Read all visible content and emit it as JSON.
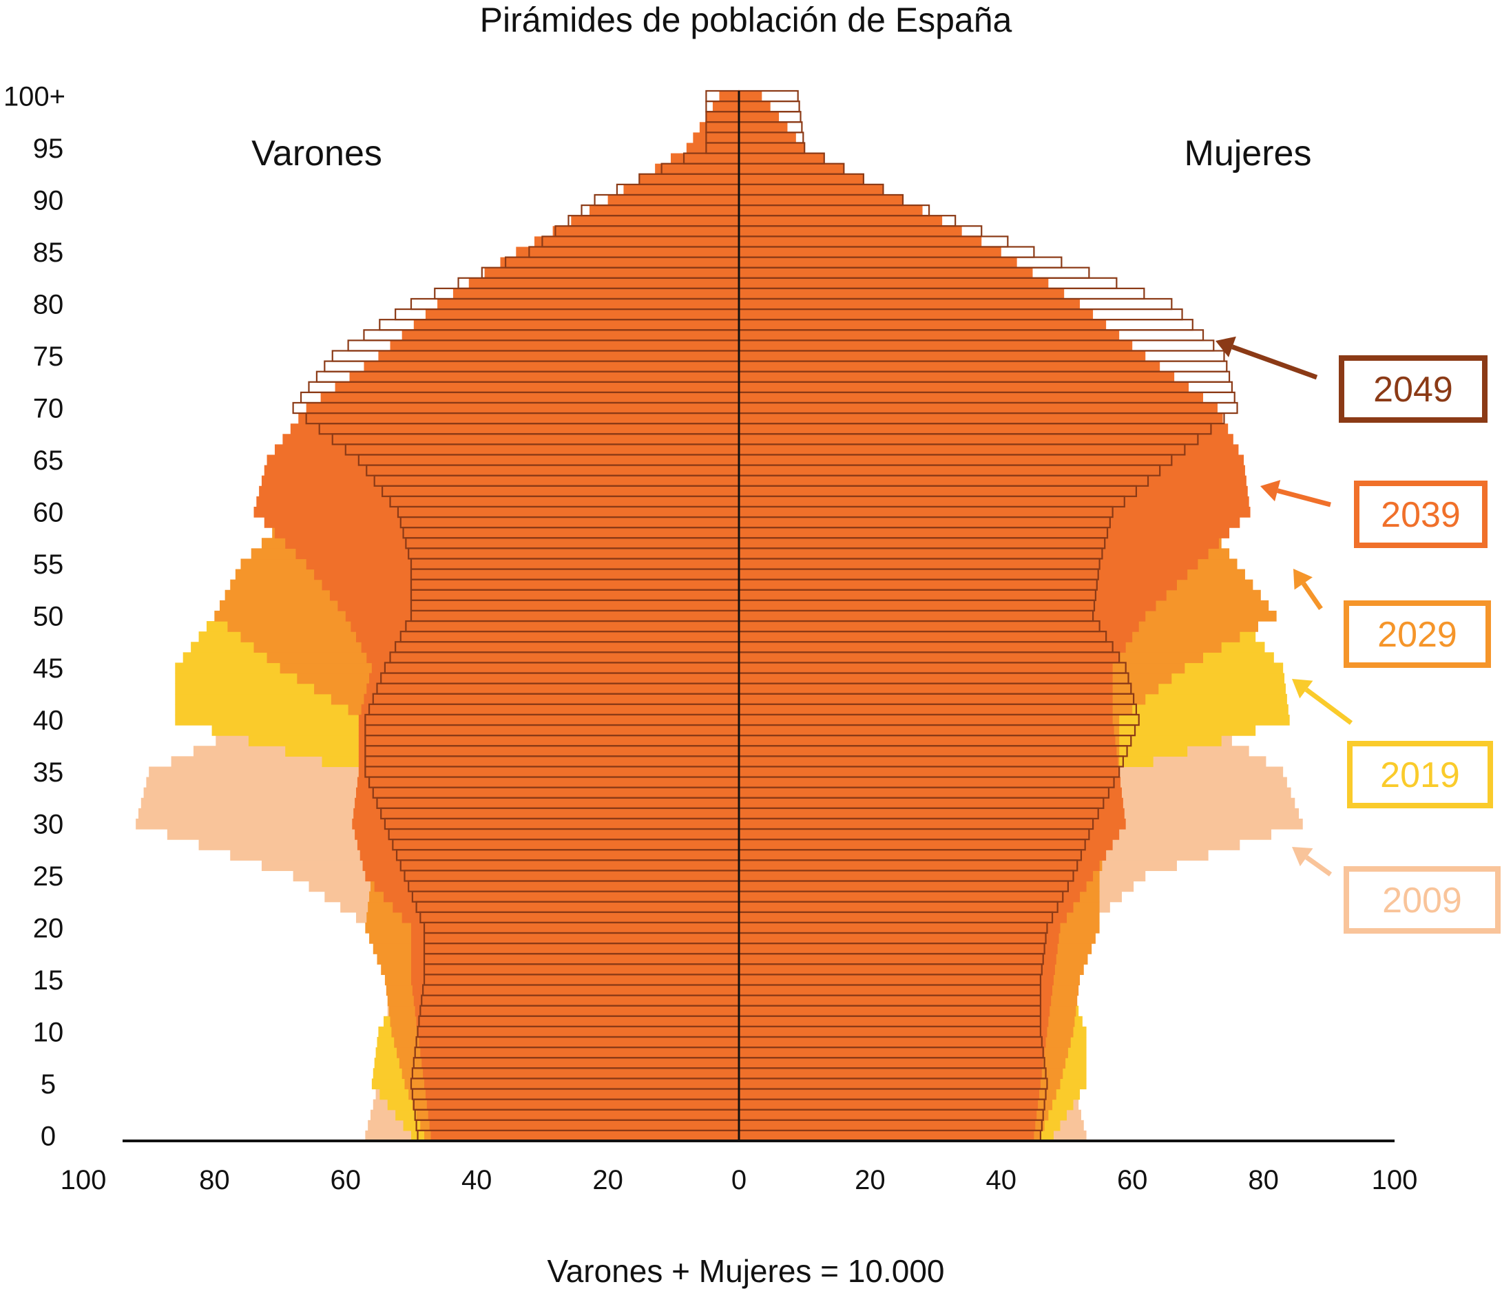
{
  "chart_data": {
    "type": "bar",
    "orientation": "horizontal-population-pyramid",
    "title": "Pirámides de población de España",
    "left_label": "Varones",
    "right_label": "Mujeres",
    "footnote": "Varones + Mujeres = 10.000",
    "age_ticks": [
      "0",
      "5",
      "10",
      "15",
      "20",
      "25",
      "30",
      "35",
      "40",
      "45",
      "50",
      "55",
      "60",
      "65",
      "70",
      "75",
      "80",
      "85",
      "90",
      "95",
      "100+"
    ],
    "x_ticks_left": [
      "100",
      "80",
      "60",
      "40",
      "20"
    ],
    "x_ticks_center": "0",
    "x_ticks_right": [
      "20",
      "40",
      "60",
      "80",
      "100"
    ],
    "xlim": [
      -100,
      100
    ],
    "ylim": [
      0,
      100
    ],
    "grid": false,
    "ages": [
      0,
      5,
      10,
      15,
      20,
      25,
      30,
      35,
      40,
      45,
      50,
      55,
      60,
      65,
      70,
      75,
      80,
      85,
      90,
      95,
      100
    ],
    "series": [
      {
        "name": "2009",
        "color": "#F9C49A",
        "outline": false,
        "men": [
          57,
          55,
          54,
          53,
          56,
          68,
          92,
          90,
          73,
          68,
          65,
          58,
          55,
          50,
          45,
          40,
          30,
          20,
          10,
          4,
          1
        ],
        "women": [
          53,
          51,
          50,
          50,
          53,
          62,
          86,
          83,
          70,
          66,
          63,
          58,
          55,
          52,
          50,
          46,
          38,
          27,
          15,
          5,
          1.5
        ]
      },
      {
        "name": "2019",
        "color": "#FACB2B",
        "outline": false,
        "men": [
          50,
          56,
          55,
          51,
          52,
          55,
          57,
          58,
          86,
          86,
          80,
          66,
          60,
          56,
          50,
          44,
          35,
          24,
          12,
          5,
          1.5
        ],
        "women": [
          48,
          53,
          53,
          50,
          51,
          54,
          56,
          58,
          84,
          83,
          76,
          66,
          60,
          56,
          52,
          48,
          40,
          29,
          17,
          6,
          2
        ]
      },
      {
        "name": "2029",
        "color": "#F5952A",
        "outline": false,
        "men": [
          48,
          51,
          53,
          54,
          57,
          56,
          58,
          57,
          57,
          70,
          80,
          76,
          68,
          58,
          52,
          47,
          39,
          28,
          15,
          6,
          2
        ],
        "women": [
          46,
          49,
          51,
          52,
          55,
          55,
          57,
          58,
          58,
          68,
          82,
          76,
          70,
          60,
          55,
          50,
          43,
          33,
          20,
          7,
          2.5
        ]
      },
      {
        "name": "2039",
        "color": "#F0702A",
        "outline": false,
        "men": [
          47,
          48,
          49,
          50,
          50,
          57,
          59,
          58,
          58,
          56,
          60,
          66,
          74,
          72,
          66,
          55,
          46,
          34,
          20,
          8,
          3
        ],
        "women": [
          45,
          46,
          47,
          48,
          49,
          54,
          59,
          58,
          57,
          57,
          62,
          70,
          78,
          77,
          73,
          62,
          52,
          40,
          25,
          10,
          3.5
        ]
      },
      {
        "name": "2049",
        "color": "#8B3A16",
        "outline": true,
        "men": [
          49,
          50,
          49,
          48,
          48,
          51,
          54,
          57,
          57,
          54,
          50,
          50,
          52,
          58,
          68,
          62,
          50,
          32,
          22,
          5,
          5
        ],
        "women": [
          46,
          47,
          46,
          46,
          47,
          51,
          54,
          58,
          61,
          59,
          54,
          55,
          57,
          66,
          76,
          74,
          66,
          45,
          25,
          10,
          9
        ]
      }
    ]
  }
}
